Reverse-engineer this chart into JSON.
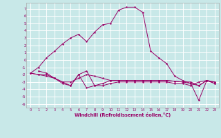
{
  "xlabel": "Windchill (Refroidissement éolien,°C)",
  "background_color": "#c8e8e8",
  "grid_color": "#ffffff",
  "line_color": "#990066",
  "xlim": [
    -0.5,
    23.5
  ],
  "ylim": [
    -6.5,
    7.8
  ],
  "xticks": [
    0,
    1,
    2,
    3,
    4,
    5,
    6,
    7,
    8,
    9,
    10,
    11,
    12,
    13,
    14,
    15,
    16,
    17,
    18,
    19,
    20,
    21,
    22,
    23
  ],
  "yticks": [
    -6,
    -5,
    -4,
    -3,
    -2,
    -1,
    0,
    1,
    2,
    3,
    4,
    5,
    6,
    7
  ],
  "main_x": [
    0,
    1,
    2,
    3,
    4,
    5,
    6,
    7,
    8,
    9,
    10,
    11,
    12,
    13,
    14,
    15,
    16,
    17,
    18,
    19,
    20,
    21,
    22,
    23
  ],
  "main_y": [
    -1.8,
    -1.0,
    0.3,
    1.2,
    2.2,
    3.0,
    3.5,
    2.5,
    3.8,
    4.8,
    5.0,
    6.8,
    7.2,
    7.2,
    6.5,
    1.2,
    0.3,
    -0.5,
    -2.2,
    -2.8,
    -3.2,
    -5.5,
    -2.8,
    -3.0
  ],
  "series2_x": [
    0,
    1,
    2,
    3,
    4,
    5,
    6,
    7,
    8,
    9,
    10,
    11,
    12,
    13,
    14,
    15,
    16,
    17,
    18,
    19,
    20,
    21,
    22,
    23
  ],
  "series2_y": [
    -1.8,
    -2.0,
    -2.2,
    -2.5,
    -3.0,
    -3.0,
    -2.5,
    -2.0,
    -2.2,
    -2.5,
    -2.8,
    -2.8,
    -2.8,
    -2.8,
    -2.8,
    -2.8,
    -2.8,
    -2.8,
    -2.9,
    -3.0,
    -3.2,
    -3.5,
    -2.8,
    -3.2
  ],
  "series3_x": [
    0,
    1,
    2,
    3,
    4,
    5,
    6,
    7,
    8,
    9,
    10,
    11,
    12,
    13,
    14,
    15,
    16,
    17,
    18,
    19,
    20,
    21,
    22,
    23
  ],
  "series3_y": [
    -1.8,
    -2.0,
    -2.0,
    -2.5,
    -3.2,
    -3.5,
    -2.0,
    -3.8,
    -3.5,
    -3.5,
    -3.2,
    -3.0,
    -3.0,
    -3.0,
    -3.0,
    -3.0,
    -3.0,
    -3.0,
    -3.2,
    -3.2,
    -3.5,
    -3.0,
    -2.8,
    -3.2
  ],
  "series4_x": [
    1,
    2,
    3,
    4,
    5,
    6,
    7,
    8,
    9,
    10,
    11,
    12,
    13,
    14,
    15,
    16,
    17,
    18,
    19,
    20,
    21,
    22,
    23
  ],
  "series4_y": [
    -1.5,
    -1.8,
    -2.5,
    -3.0,
    -3.5,
    -2.0,
    -1.5,
    -3.5,
    -3.2,
    -2.8,
    -2.8,
    -2.8,
    -2.8,
    -2.8,
    -2.8,
    -2.8,
    -2.8,
    -2.9,
    -3.0,
    -3.0,
    -3.5,
    -2.8,
    -3.0
  ]
}
